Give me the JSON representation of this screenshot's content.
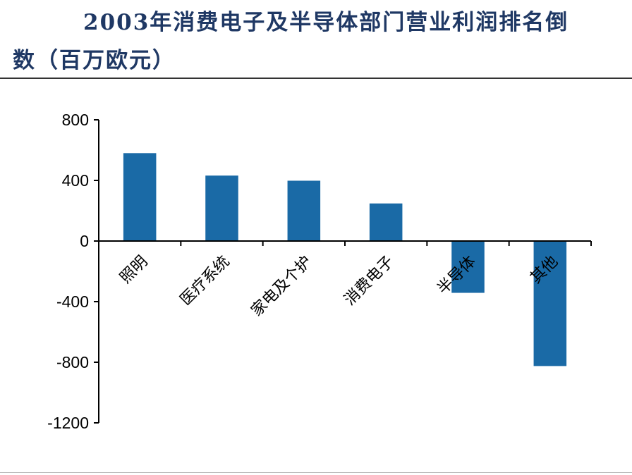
{
  "title": {
    "line1": "2003年消费电子及半导体部门营业利润排名倒",
    "line2": "数（百万欧元）"
  },
  "colors": {
    "bar": "#1a6aa6",
    "axis": "#000000",
    "title": "#1f3864"
  },
  "chart_data": {
    "type": "bar",
    "title": "2003年消费电子及半导体部门营业利润排名倒数（百万欧元）",
    "categories": [
      "照明",
      "医疗系统",
      "家电及个护",
      "消费电子",
      "半导体",
      "其他"
    ],
    "series": [
      {
        "values": [
          580,
          432,
          398,
          248,
          -342,
          -825
        ]
      }
    ],
    "yticks": [
      800,
      400,
      0,
      -400,
      -800,
      -1200
    ],
    "ylim": [
      -1200,
      800
    ],
    "grid": false,
    "legend": "none"
  }
}
